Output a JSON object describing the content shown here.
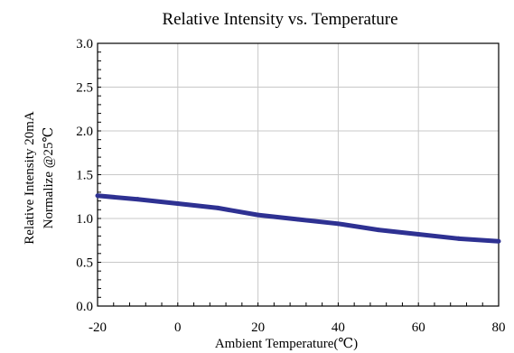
{
  "chart_data": {
    "type": "line",
    "title": "Relative Intensity vs. Temperature",
    "xlabel": "Ambient Temperature(℃)",
    "ylabel_line1": "Relative Intensity 20mA",
    "ylabel_line2": "Normalize @25℃",
    "xlim": [
      -20,
      80
    ],
    "ylim": [
      0.0,
      3.0
    ],
    "x_ticks": [
      -20,
      0,
      20,
      40,
      60,
      80
    ],
    "x_tick_labels": [
      "-20",
      "0",
      "20",
      "40",
      "60",
      "80"
    ],
    "y_ticks": [
      0.0,
      0.5,
      1.0,
      1.5,
      2.0,
      2.5,
      3.0
    ],
    "y_tick_labels": [
      "0.0",
      "0.5",
      "1.0",
      "1.5",
      "2.0",
      "2.5",
      "3.0"
    ],
    "grid": true,
    "legend": "none",
    "line_color": "#2e3192",
    "series": [
      {
        "x": [
          -20,
          -10,
          0,
          10,
          20,
          30,
          40,
          50,
          60,
          70,
          80
        ],
        "y": [
          1.26,
          1.22,
          1.17,
          1.12,
          1.04,
          0.99,
          0.94,
          0.87,
          0.82,
          0.77,
          0.74
        ]
      }
    ]
  }
}
